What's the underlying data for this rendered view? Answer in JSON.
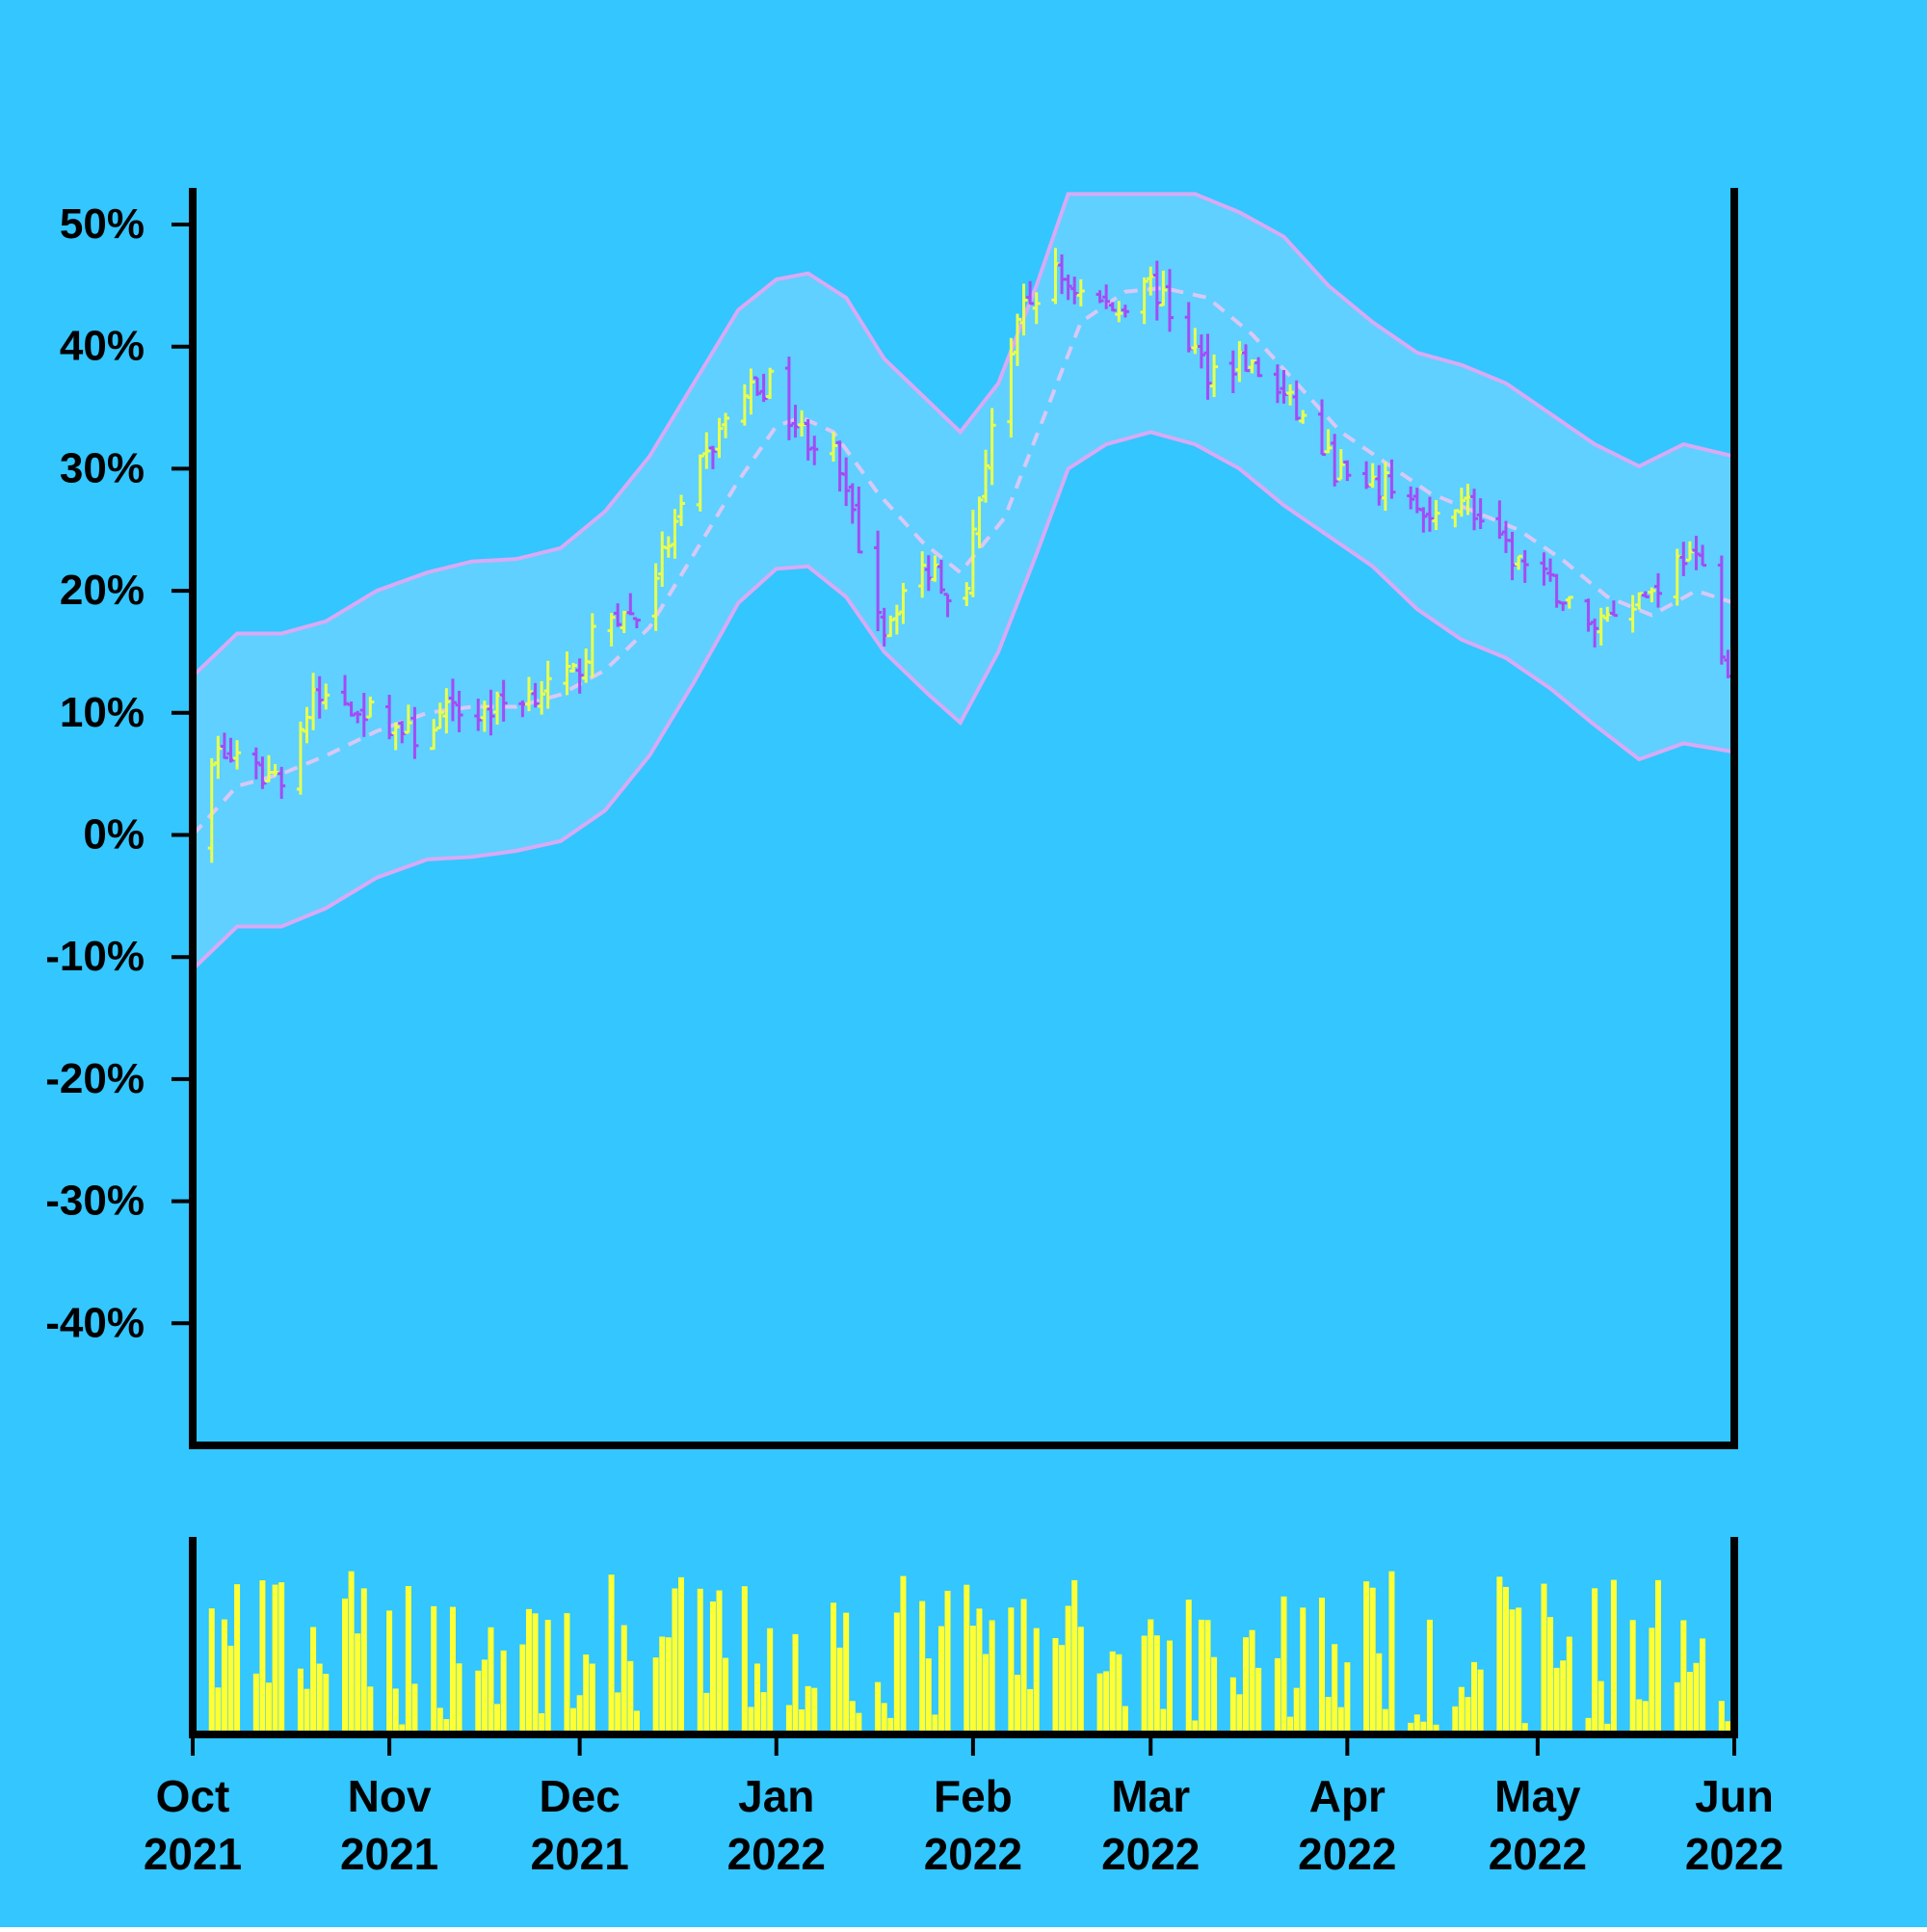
{
  "chart_data": {
    "type": "ohlc",
    "title": "",
    "xlabel": "",
    "ylabel": "",
    "x_range": [
      "2021-10-01",
      "2022-06-01"
    ],
    "ylim": [
      -50,
      53
    ],
    "y_ticks": [
      -40,
      -30,
      -20,
      -10,
      0,
      10,
      20,
      30,
      40,
      50
    ],
    "y_tick_labels": [
      "-40%",
      "-30%",
      "-20%",
      "-10%",
      "0%",
      "10%",
      "20%",
      "30%",
      "40%",
      "50%"
    ],
    "x_ticks": [
      {
        "date": "2021-10-01",
        "label": [
          "Oct",
          "2021"
        ]
      },
      {
        "date": "2021-11-01",
        "label": [
          "Nov",
          "2021"
        ]
      },
      {
        "date": "2021-12-01",
        "label": [
          "Dec",
          "2021"
        ]
      },
      {
        "date": "2022-01-01",
        "label": [
          "Jan",
          "2022"
        ]
      },
      {
        "date": "2022-02-01",
        "label": [
          "Feb",
          "2022"
        ]
      },
      {
        "date": "2022-03-01",
        "label": [
          "Mar",
          "2022"
        ]
      },
      {
        "date": "2022-04-01",
        "label": [
          "Apr",
          "2022"
        ]
      },
      {
        "date": "2022-05-01",
        "label": [
          "May",
          "2022"
        ]
      },
      {
        "date": "2022-06-01",
        "label": [
          "Jun",
          "2022"
        ]
      }
    ],
    "close_path": [
      [
        "2021-10-01",
        0
      ],
      [
        "2021-10-05",
        7
      ],
      [
        "2021-10-10",
        5
      ],
      [
        "2021-10-15",
        5
      ],
      [
        "2021-10-20",
        11
      ],
      [
        "2021-10-25",
        11
      ],
      [
        "2021-10-29",
        10
      ],
      [
        "2021-11-05",
        8
      ],
      [
        "2021-11-10",
        10
      ],
      [
        "2021-11-15",
        10
      ],
      [
        "2021-11-20",
        11
      ],
      [
        "2021-11-25",
        12
      ],
      [
        "2021-11-30",
        13
      ],
      [
        "2021-12-05",
        18
      ],
      [
        "2021-12-10",
        18
      ],
      [
        "2021-12-15",
        24
      ],
      [
        "2021-12-20",
        30
      ],
      [
        "2021-12-26",
        36
      ],
      [
        "2021-12-31",
        37
      ],
      [
        "2022-01-05",
        33
      ],
      [
        "2022-01-10",
        31
      ],
      [
        "2022-01-14",
        24
      ],
      [
        "2022-01-18",
        17
      ],
      [
        "2022-01-22",
        21
      ],
      [
        "2022-01-26",
        22
      ],
      [
        "2022-01-30",
        18
      ],
      [
        "2022-02-04",
        34
      ],
      [
        "2022-02-09",
        43
      ],
      [
        "2022-02-14",
        46
      ],
      [
        "2022-02-19",
        44
      ],
      [
        "2022-02-24",
        43
      ],
      [
        "2022-02-28",
        46
      ],
      [
        "2022-03-05",
        42
      ],
      [
        "2022-03-10",
        38
      ],
      [
        "2022-03-15",
        39
      ],
      [
        "2022-03-20",
        37
      ],
      [
        "2022-03-25",
        34
      ],
      [
        "2022-03-30",
        30
      ],
      [
        "2022-04-04",
        28
      ],
      [
        "2022-04-09",
        29
      ],
      [
        "2022-04-14",
        25
      ],
      [
        "2022-04-19",
        28
      ],
      [
        "2022-04-24",
        24
      ],
      [
        "2022-04-29",
        22
      ],
      [
        "2022-05-04",
        20
      ],
      [
        "2022-05-09",
        17
      ],
      [
        "2022-05-14",
        19
      ],
      [
        "2022-05-19",
        20
      ],
      [
        "2022-05-24",
        23
      ],
      [
        "2022-05-28",
        21
      ],
      [
        "2022-05-31",
        13
      ]
    ],
    "moving_average": [
      [
        "2021-10-01",
        0
      ],
      [
        "2021-10-08",
        4
      ],
      [
        "2021-10-15",
        5
      ],
      [
        "2021-10-22",
        6.5
      ],
      [
        "2021-10-30",
        8.5
      ],
      [
        "2021-11-07",
        10
      ],
      [
        "2021-11-14",
        10.5
      ],
      [
        "2021-11-21",
        10.5
      ],
      [
        "2021-11-28",
        11.5
      ],
      [
        "2021-12-05",
        13.5
      ],
      [
        "2021-12-12",
        17
      ],
      [
        "2021-12-19",
        23
      ],
      [
        "2021-12-26",
        29
      ],
      [
        "2022-01-01",
        33.5
      ],
      [
        "2022-01-05",
        34.2
      ],
      [
        "2022-01-10",
        33
      ],
      [
        "2022-01-17",
        28
      ],
      [
        "2022-01-24",
        24
      ],
      [
        "2022-01-30",
        21.5
      ],
      [
        "2022-02-06",
        26
      ],
      [
        "2022-02-12",
        34
      ],
      [
        "2022-02-18",
        42
      ],
      [
        "2022-02-25",
        44.5
      ],
      [
        "2022-03-03",
        44.8
      ],
      [
        "2022-03-10",
        44
      ],
      [
        "2022-03-17",
        41
      ],
      [
        "2022-03-24",
        37
      ],
      [
        "2022-03-31",
        33
      ],
      [
        "2022-04-07",
        30.5
      ],
      [
        "2022-04-14",
        28
      ],
      [
        "2022-04-21",
        26.5
      ],
      [
        "2022-04-28",
        25
      ],
      [
        "2022-05-05",
        22.5
      ],
      [
        "2022-05-12",
        19.5
      ],
      [
        "2022-05-19",
        18
      ],
      [
        "2022-05-26",
        20
      ],
      [
        "2022-06-01",
        19
      ]
    ],
    "upper_band": [
      [
        "2021-10-01",
        13
      ],
      [
        "2021-10-08",
        16.5
      ],
      [
        "2021-10-15",
        16.5
      ],
      [
        "2021-10-22",
        17.5
      ],
      [
        "2021-10-30",
        20
      ],
      [
        "2021-11-07",
        21.5
      ],
      [
        "2021-11-14",
        22.4
      ],
      [
        "2021-11-21",
        22.6
      ],
      [
        "2021-11-28",
        23.5
      ],
      [
        "2021-12-05",
        26.5
      ],
      [
        "2021-12-12",
        31
      ],
      [
        "2021-12-19",
        37
      ],
      [
        "2021-12-26",
        43
      ],
      [
        "2022-01-01",
        45.5
      ],
      [
        "2022-01-06",
        46
      ],
      [
        "2022-01-12",
        44
      ],
      [
        "2022-01-18",
        39
      ],
      [
        "2022-01-25",
        35.5
      ],
      [
        "2022-01-30",
        33
      ],
      [
        "2022-02-05",
        37
      ],
      [
        "2022-02-11",
        45
      ],
      [
        "2022-02-16",
        52.5
      ],
      [
        "2022-03-08",
        52.5
      ],
      [
        "2022-03-15",
        51
      ],
      [
        "2022-03-22",
        49
      ],
      [
        "2022-03-29",
        45
      ],
      [
        "2022-04-05",
        42
      ],
      [
        "2022-04-12",
        39.5
      ],
      [
        "2022-04-19",
        38.5
      ],
      [
        "2022-04-26",
        37
      ],
      [
        "2022-05-03",
        34.5
      ],
      [
        "2022-05-10",
        32
      ],
      [
        "2022-05-17",
        30.2
      ],
      [
        "2022-05-24",
        32
      ],
      [
        "2022-06-01",
        31
      ]
    ],
    "lower_band": [
      [
        "2021-10-01",
        -11
      ],
      [
        "2021-10-08",
        -7.5
      ],
      [
        "2021-10-15",
        -7.5
      ],
      [
        "2021-10-22",
        -6
      ],
      [
        "2021-10-30",
        -3.5
      ],
      [
        "2021-11-07",
        -2
      ],
      [
        "2021-11-14",
        -1.8
      ],
      [
        "2021-11-21",
        -1.3
      ],
      [
        "2021-11-28",
        -0.5
      ],
      [
        "2021-12-05",
        2
      ],
      [
        "2021-12-12",
        6.5
      ],
      [
        "2021-12-19",
        12.5
      ],
      [
        "2021-12-26",
        19
      ],
      [
        "2022-01-01",
        21.8
      ],
      [
        "2022-01-06",
        22
      ],
      [
        "2022-01-12",
        19.5
      ],
      [
        "2022-01-18",
        15
      ],
      [
        "2022-01-25",
        11.5
      ],
      [
        "2022-01-30",
        9.2
      ],
      [
        "2022-02-05",
        15
      ],
      [
        "2022-02-11",
        23
      ],
      [
        "2022-02-16",
        30
      ],
      [
        "2022-02-22",
        32
      ],
      [
        "2022-03-01",
        33
      ],
      [
        "2022-03-08",
        32
      ],
      [
        "2022-03-15",
        30
      ],
      [
        "2022-03-22",
        27
      ],
      [
        "2022-03-29",
        24.5
      ],
      [
        "2022-04-05",
        22
      ],
      [
        "2022-04-12",
        18.5
      ],
      [
        "2022-04-19",
        16
      ],
      [
        "2022-04-26",
        14.5
      ],
      [
        "2022-05-03",
        12
      ],
      [
        "2022-05-10",
        9
      ],
      [
        "2022-05-17",
        6.2
      ],
      [
        "2022-05-24",
        7.5
      ],
      [
        "2022-06-01",
        6.8
      ]
    ],
    "series_colors": {
      "up": "#e8ff4d",
      "down": "#a24cf5",
      "bands": "#d8aaf5",
      "band_fill": "#5fd0ff",
      "moving_average": "#d8c8f5",
      "volume": "#ffff33"
    },
    "colors": {
      "background": "#33c6ff",
      "axes": "#000000"
    },
    "grid": false,
    "volume_panel": true
  }
}
